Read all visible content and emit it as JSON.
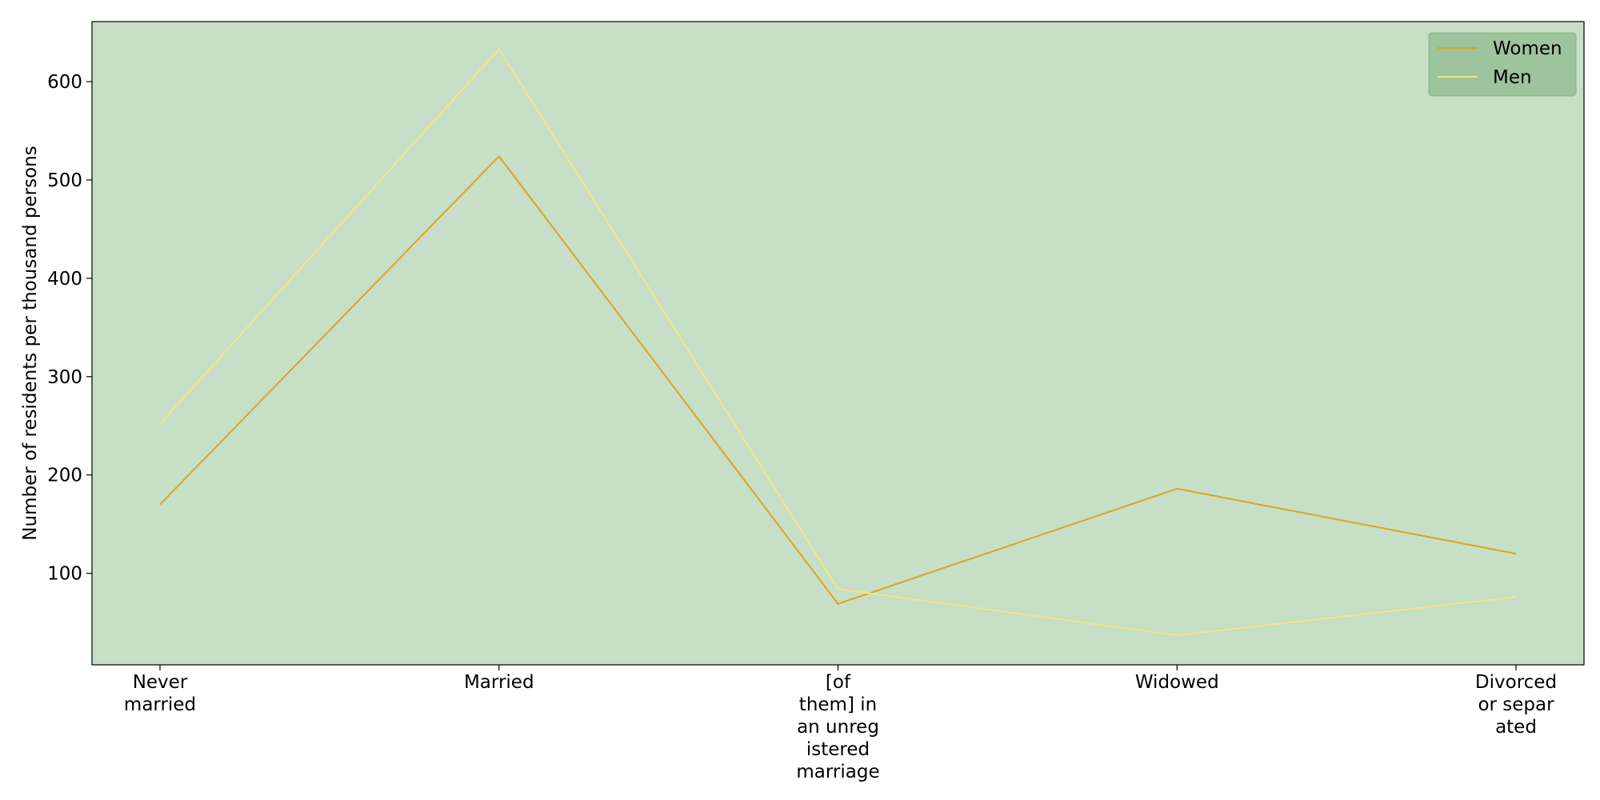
{
  "chart_data": {
    "type": "line",
    "categories": [
      [
        "Never",
        "married"
      ],
      [
        "Married"
      ],
      [
        "[of",
        "them] in",
        "an unreg",
        "istered",
        "marriage"
      ],
      [
        "Widowed"
      ],
      [
        "Divorced",
        "or separ",
        "ated"
      ]
    ],
    "series": [
      {
        "name": "Women",
        "color": "#DAA520",
        "values": [
          170,
          524,
          69,
          186,
          120
        ]
      },
      {
        "name": "Men",
        "color": "#F0E68C",
        "values": [
          252,
          633,
          84,
          37,
          76
        ]
      }
    ],
    "ylabel": "Number of residents per thousand persons",
    "xlabel": "",
    "ylim": [
      7,
      661
    ],
    "yticks": [
      100,
      200,
      300,
      400,
      500,
      600
    ],
    "grid": false,
    "legend_position": "top-right",
    "plot_background": "#C6DFC6",
    "legend_background": "#9DC49D"
  }
}
